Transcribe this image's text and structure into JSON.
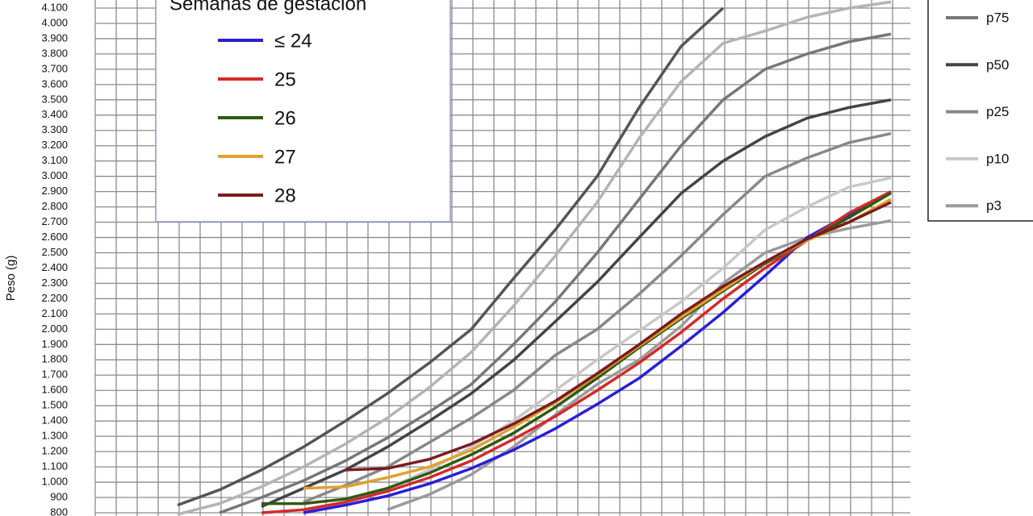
{
  "chart_data": {
    "type": "line",
    "y_label": "Peso (g)",
    "legend_title": "Semanas de gestación",
    "grid": true,
    "categories": [
      null,
      null,
      null,
      null,
      null,
      null,
      null,
      null,
      null,
      null,
      null,
      null,
      null,
      null,
      null,
      null,
      null,
      null
    ],
    "ylim": [
      800,
      4100
    ],
    "yticks": [
      800,
      900,
      {
        "value": 1000,
        "label": "1.000"
      },
      {
        "value": 1100,
        "label": "1.100"
      },
      {
        "value": 1200,
        "label": "1.200"
      },
      {
        "value": 1300,
        "label": "1.300"
      },
      {
        "value": 1400,
        "label": "1.400"
      },
      {
        "value": 1500,
        "label": "1.500"
      },
      {
        "value": 1600,
        "label": "1.600"
      },
      {
        "value": 1700,
        "label": "1.700"
      },
      {
        "value": 1800,
        "label": "1.800"
      },
      {
        "value": 1900,
        "label": "1.900"
      },
      {
        "value": 2000,
        "label": "2.000"
      },
      {
        "value": 2100,
        "label": "2.100"
      },
      {
        "value": 2200,
        "label": "2.200"
      },
      {
        "value": 2300,
        "label": "2.300"
      },
      {
        "value": 2400,
        "label": "2.400"
      },
      {
        "value": 2500,
        "label": "2.500"
      },
      {
        "value": 2600,
        "label": "2.600"
      },
      {
        "value": 2700,
        "label": "2.700"
      },
      {
        "value": 2800,
        "label": "2.800"
      },
      {
        "value": 2900,
        "label": "2.900"
      },
      {
        "value": 3000,
        "label": "3.000"
      },
      {
        "value": 3100,
        "label": "3.100"
      },
      {
        "value": 3200,
        "label": "3.200"
      },
      {
        "value": 3300,
        "label": "3.300"
      },
      {
        "value": 3400,
        "label": "3.400"
      },
      {
        "value": 3500,
        "label": "3.500"
      },
      {
        "value": 3600,
        "label": "3.600"
      },
      {
        "value": 3700,
        "label": "3.700"
      },
      {
        "value": 3800,
        "label": "3.800"
      },
      {
        "value": 3900,
        "label": "3.900"
      },
      {
        "value": 4000,
        "label": "4.000"
      },
      {
        "value": 4100,
        "label": "4.100"
      }
    ],
    "series": [
      {
        "color": "#555555",
        "values": [
          850,
          950,
          1080,
          1230,
          1400,
          1580,
          1780,
          2000,
          2330,
          2650,
          3000,
          3450,
          3850,
          4100,
          null,
          null,
          null,
          null
        ]
      },
      {
        "color": "#b4b4b4",
        "values": [
          790,
          860,
          970,
          1100,
          1250,
          1420,
          1620,
          1850,
          2150,
          2480,
          2830,
          3250,
          3620,
          3870,
          3950,
          4040,
          4100,
          4140
        ]
      },
      {
        "name": "p75",
        "color": "#777777",
        "values": [
          null,
          800,
          900,
          1010,
          1140,
          1290,
          1460,
          1640,
          1900,
          2180,
          2500,
          2850,
          3200,
          3500,
          3700,
          3800,
          3880,
          3930
        ]
      },
      {
        "name": "p50",
        "color": "#444444",
        "values": [
          null,
          null,
          840,
          960,
          1080,
          1230,
          1400,
          1580,
          1796,
          2050,
          2308,
          2600,
          2888,
          3100,
          3260,
          3380,
          3450,
          3500
        ]
      },
      {
        "name": "p25",
        "color": "#888888",
        "values": [
          null,
          null,
          null,
          870,
          980,
          1100,
          1260,
          1420,
          1600,
          1830,
          2000,
          2230,
          2480,
          2750,
          3000,
          3120,
          3220,
          3280
        ]
      },
      {
        "name": "p10",
        "color": "#c8c8c8",
        "values": [
          null,
          null,
          null,
          null,
          880,
          960,
          1080,
          1230,
          1400,
          1600,
          1800,
          1990,
          2180,
          2400,
          2650,
          2800,
          2930,
          2990
        ]
      },
      {
        "name": "p3",
        "color": "#9a9a9a",
        "values": [
          null,
          null,
          null,
          null,
          null,
          820,
          920,
          1050,
          1230,
          1440,
          1640,
          1800,
          2020,
          2300,
          2500,
          2600,
          2660,
          2710
        ]
      },
      {
        "name": "≤ 24",
        "color": "#2a1fd6",
        "values": [
          null,
          null,
          null,
          800,
          850,
          910,
          990,
          1090,
          1210,
          1350,
          1510,
          1680,
          1890,
          2110,
          2350,
          2600,
          2750,
          2900
        ]
      },
      {
        "name": "25",
        "color": "#d42a2a",
        "values": [
          null,
          null,
          800,
          820,
          870,
          940,
          1030,
          1140,
          1280,
          1430,
          1600,
          1780,
          1980,
          2200,
          2400,
          2580,
          2760,
          2900
        ]
      },
      {
        "name": "26",
        "color": "#2f5a12",
        "values": [
          null,
          null,
          860,
          860,
          890,
          960,
          1060,
          1180,
          1320,
          1490,
          1680,
          1880,
          2070,
          2250,
          2430,
          2580,
          2730,
          2890
        ]
      },
      {
        "name": "27",
        "color": "#e0a030",
        "values": [
          null,
          null,
          null,
          960,
          970,
          1030,
          1100,
          1210,
          1360,
          1520,
          1700,
          1890,
          2080,
          2260,
          2440,
          2580,
          2700,
          2850
        ]
      },
      {
        "name": "28",
        "color": "#7a1c20",
        "values": [
          null,
          null,
          null,
          null,
          1080,
          1090,
          1150,
          1250,
          1380,
          1530,
          1710,
          1900,
          2100,
          2280,
          2440,
          2590,
          2700,
          2830
        ]
      }
    ]
  }
}
